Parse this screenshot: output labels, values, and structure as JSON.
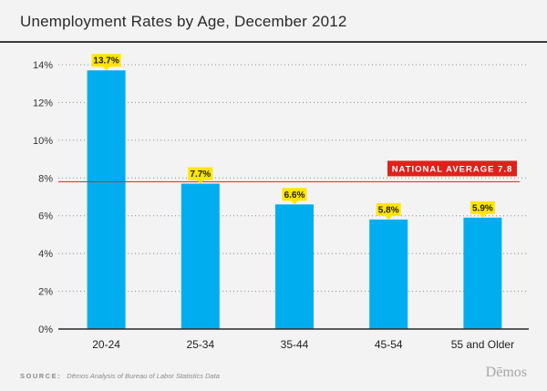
{
  "title": "Unemployment Rates by Age, December 2012",
  "footer": {
    "source_label": "SOURCE:",
    "source_text": "Dēmos Analysis of Bureau of Labor Statistics Data",
    "brand": "Dēmos"
  },
  "colors": {
    "bar": "#00aeef",
    "label_bg": "#ffe600",
    "reference_line": "#e0211b",
    "grid": "#8a8a8a",
    "axis": "#2a2a2a"
  },
  "chart_data": {
    "type": "bar",
    "title": "Unemployment Rates by Age, December 2012",
    "categories": [
      "20-24",
      "25-34",
      "35-44",
      "45-54",
      "55 and Older"
    ],
    "values": [
      13.7,
      7.7,
      6.6,
      5.8,
      5.9
    ],
    "data_labels": [
      "13.7%",
      "7.7%",
      "6.6%",
      "5.8%",
      "5.9%"
    ],
    "ylim": [
      0,
      14
    ],
    "yticks": [
      0,
      2,
      4,
      6,
      8,
      10,
      12,
      14
    ],
    "ytick_labels": [
      "0%",
      "2%",
      "4%",
      "6%",
      "8%",
      "10%",
      "12%",
      "14%"
    ],
    "grid": "horizontal-dotted",
    "reference_line": {
      "value": 7.8,
      "label": "NATIONAL AVERAGE 7.8"
    }
  }
}
